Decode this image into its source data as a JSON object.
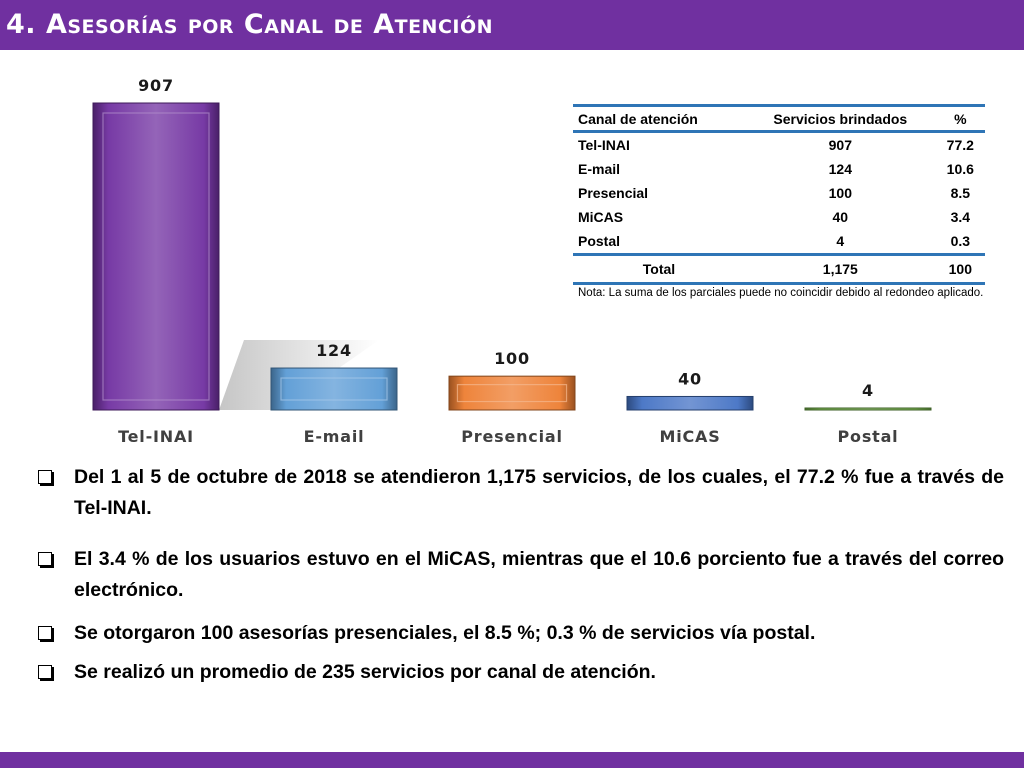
{
  "title": "4. Asesorías por Canal de Atención",
  "chart_data": {
    "type": "bar",
    "categories": [
      "Tel-INAI",
      "E-mail",
      "Presencial",
      "MiCAS",
      "Postal"
    ],
    "values": [
      907,
      124,
      100,
      40,
      4
    ],
    "value_labels": [
      "907",
      "124",
      "100",
      "40",
      "4"
    ],
    "colors": [
      "#7030a0",
      "#5b9bd5",
      "#ed7d31",
      "#4472c4",
      "#70ad47"
    ],
    "ylim": [
      0,
      907
    ],
    "grid": false,
    "legend": "none"
  },
  "table": {
    "headers": [
      "Canal de atención",
      "Servicios brindados",
      "%"
    ],
    "rows": [
      [
        "Tel-INAI",
        "907",
        "77.2"
      ],
      [
        "E-mail",
        "124",
        "10.6"
      ],
      [
        "Presencial",
        "100",
        "8.5"
      ],
      [
        "MiCAS",
        "40",
        "3.4"
      ],
      [
        "Postal",
        "4",
        "0.3"
      ]
    ],
    "total": [
      "Total",
      "1,175",
      "100"
    ],
    "note": "Nota: La suma de los parciales puede no coincidir debido al redondeo aplicado."
  },
  "bullets": [
    "Del 1 al 5 de octubre de 2018 se atendieron 1,175 servicios, de los cuales, el 77.2 % fue a través de Tel-INAI.",
    "El 3.4 % de los usuarios estuvo en el MiCAS, mientras que el 10.6 porciento fue a través del correo electrónico.",
    "Se otorgaron 100 asesorías presenciales, el 8.5 %; 0.3 % de servicios vía postal.",
    "Se realizó un promedio de 235 servicios por canal de atención."
  ]
}
